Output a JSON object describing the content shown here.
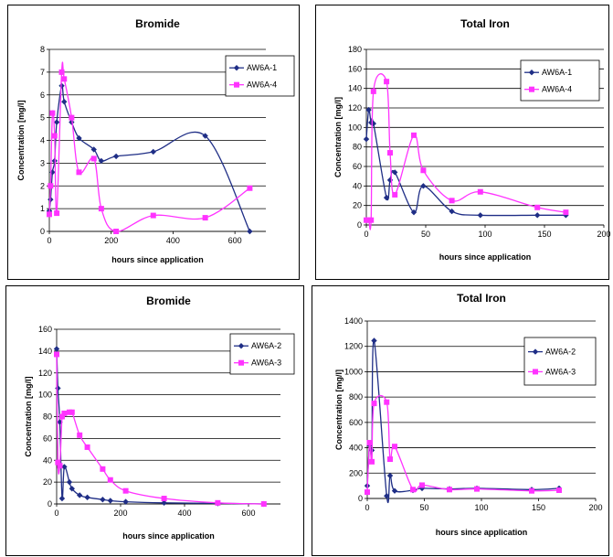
{
  "colors": {
    "series_a": "#1f2e86",
    "series_b": "#ff33ff",
    "grid": "#000000"
  },
  "chart_data": [
    {
      "type": "line",
      "title": "Bromide",
      "xlabel": "hours since application",
      "ylabel": "Concentration [mg/l]",
      "xlim": [
        0,
        700
      ],
      "ylim": [
        0,
        8
      ],
      "xticks": [
        0,
        200,
        400,
        600
      ],
      "yticks": [
        0,
        1,
        2,
        3,
        4,
        5,
        6,
        7,
        8
      ],
      "grid": true,
      "legend_position": "top-right",
      "series": [
        {
          "name": "AW6A-1",
          "color": "#1f2e86",
          "marker": "diamond",
          "x": [
            0,
            4,
            10,
            17,
            24,
            40,
            48,
            72,
            96,
            144,
            168,
            216,
            336,
            504,
            648
          ],
          "y": [
            0.9,
            1.4,
            2.6,
            3.1,
            4.8,
            6.4,
            5.7,
            4.8,
            4.1,
            3.6,
            3.1,
            3.3,
            3.5,
            4.2,
            0
          ]
        },
        {
          "name": "AW6A-4",
          "color": "#ff33ff",
          "marker": "square",
          "x": [
            0,
            4,
            10,
            17,
            24,
            40,
            48,
            72,
            96,
            144,
            168,
            216,
            336,
            504,
            648
          ],
          "y": [
            0.75,
            2.0,
            5.2,
            4.2,
            0.8,
            7.0,
            6.7,
            5.0,
            2.6,
            3.2,
            1.0,
            0,
            0.7,
            0.6,
            1.9
          ]
        }
      ]
    },
    {
      "type": "line",
      "title": "Total Iron",
      "xlabel": "hours since application",
      "ylabel": "Concentration [mg/l]",
      "xlim": [
        0,
        200
      ],
      "ylim": [
        0,
        180
      ],
      "xticks": [
        0,
        50,
        100,
        150,
        200
      ],
      "yticks": [
        0,
        20,
        40,
        60,
        80,
        100,
        120,
        140,
        160,
        180
      ],
      "grid": true,
      "legend_position": "top-right",
      "series": [
        {
          "name": "AW6A-1",
          "color": "#1f2e86",
          "marker": "diamond",
          "x": [
            0,
            2,
            4,
            6,
            17,
            20,
            24,
            40,
            48,
            72,
            96,
            144,
            168
          ],
          "y": [
            88,
            118,
            105,
            104,
            28,
            46,
            54,
            13,
            40,
            14,
            10,
            10,
            10
          ]
        },
        {
          "name": "AW6A-4",
          "color": "#ff33ff",
          "marker": "square",
          "x": [
            0,
            2,
            4,
            6,
            17,
            20,
            24,
            40,
            48,
            72,
            96,
            144,
            168
          ],
          "y": [
            5,
            5,
            5,
            137,
            147,
            74,
            31,
            92,
            56,
            25,
            34,
            18,
            13
          ]
        }
      ]
    },
    {
      "type": "line",
      "title": "Bromide",
      "xlabel": "hours since application",
      "ylabel": "Concentration [mg/l]",
      "xlim": [
        0,
        700
      ],
      "ylim": [
        0,
        160
      ],
      "xticks": [
        0,
        200,
        400,
        600
      ],
      "yticks": [
        0,
        20,
        40,
        60,
        80,
        100,
        120,
        140,
        160
      ],
      "grid": true,
      "legend_position": "top-right",
      "series": [
        {
          "name": "AW6A-2",
          "color": "#1f2e86",
          "marker": "diamond",
          "x": [
            0,
            4,
            10,
            17,
            24,
            40,
            48,
            72,
            96,
            144,
            168,
            216,
            336,
            504,
            648
          ],
          "y": [
            142,
            106,
            75,
            5,
            34,
            20,
            14,
            8,
            6,
            4,
            3,
            2,
            1,
            0.5,
            0
          ]
        },
        {
          "name": "AW6A-3",
          "color": "#ff33ff",
          "marker": "square",
          "x": [
            0,
            4,
            10,
            17,
            24,
            40,
            48,
            72,
            96,
            144,
            168,
            216,
            336,
            504,
            648
          ],
          "y": [
            137,
            38,
            35,
            80,
            83,
            84,
            84,
            63,
            52,
            32,
            22,
            12,
            5,
            1,
            0
          ]
        }
      ]
    },
    {
      "type": "line",
      "title": "Total Iron",
      "xlabel": "hours since application",
      "ylabel": "Concentration [mg/l]",
      "xlim": [
        0,
        200
      ],
      "ylim": [
        0,
        1400
      ],
      "xticks": [
        0,
        50,
        100,
        150,
        200
      ],
      "yticks": [
        0,
        200,
        400,
        600,
        800,
        1000,
        1200,
        1400
      ],
      "grid": true,
      "legend_position": "top-right",
      "series": [
        {
          "name": "AW6A-2",
          "color": "#1f2e86",
          "marker": "diamond",
          "x": [
            0,
            2,
            4,
            6,
            17,
            20,
            24,
            40,
            48,
            72,
            96,
            144,
            168
          ],
          "y": [
            100,
            420,
            380,
            1245,
            20,
            180,
            60,
            65,
            80,
            75,
            80,
            70,
            80
          ]
        },
        {
          "name": "AW6A-3",
          "color": "#ff33ff",
          "marker": "square",
          "x": [
            0,
            2,
            4,
            6,
            17,
            20,
            24,
            40,
            48,
            72,
            96,
            144,
            168
          ],
          "y": [
            50,
            440,
            290,
            750,
            760,
            310,
            410,
            70,
            105,
            70,
            75,
            60,
            65
          ]
        }
      ]
    }
  ]
}
